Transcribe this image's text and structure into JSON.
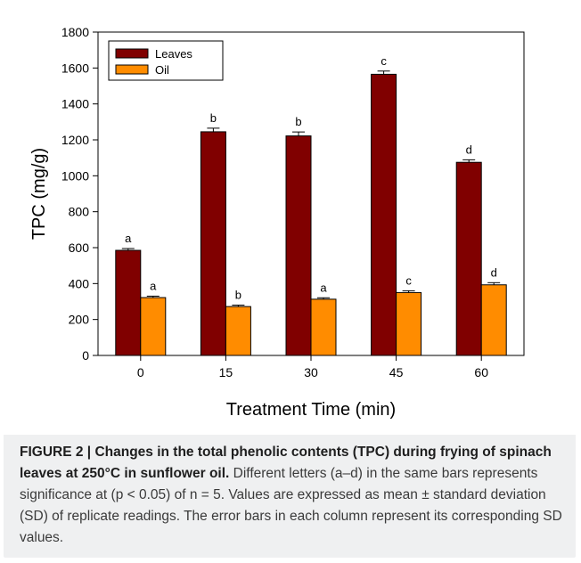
{
  "chart_data": {
    "type": "bar",
    "categories": [
      "0",
      "15",
      "30",
      "45",
      "60"
    ],
    "series": [
      {
        "name": "Leaves",
        "color": "#800000",
        "values": [
          585,
          1245,
          1222,
          1565,
          1075
        ],
        "errors": [
          10,
          20,
          22,
          18,
          14
        ],
        "letters": [
          "a",
          "b",
          "b",
          "c",
          "d"
        ]
      },
      {
        "name": "Oil",
        "color": "#ff8c00",
        "values": [
          322,
          272,
          313,
          350,
          393
        ],
        "errors": [
          8,
          8,
          8,
          10,
          12
        ],
        "letters": [
          "a",
          "b",
          "a",
          "c",
          "d"
        ]
      }
    ],
    "xlabel": "Treatment Time (min)",
    "ylabel": "TPC (mg/g)",
    "ylim": [
      0,
      1800
    ],
    "yticks": [
      "0",
      "200",
      "400",
      "600",
      "800",
      "1000",
      "1200",
      "1400",
      "1600",
      "1800"
    ],
    "grid": false,
    "legend_position": "top-left"
  },
  "caption": {
    "label": "FIGURE 2 | ",
    "title": "Changes in the total phenolic contents (TPC) during frying of spinach leaves at 250°C in sunflower oil.",
    "body": " Different letters (a–d) in the same bars represents significance at (p < 0.05) of n = 5. Values are expressed as mean ± standard deviation (SD) of replicate readings. The error bars in each column represent its corresponding SD values."
  }
}
